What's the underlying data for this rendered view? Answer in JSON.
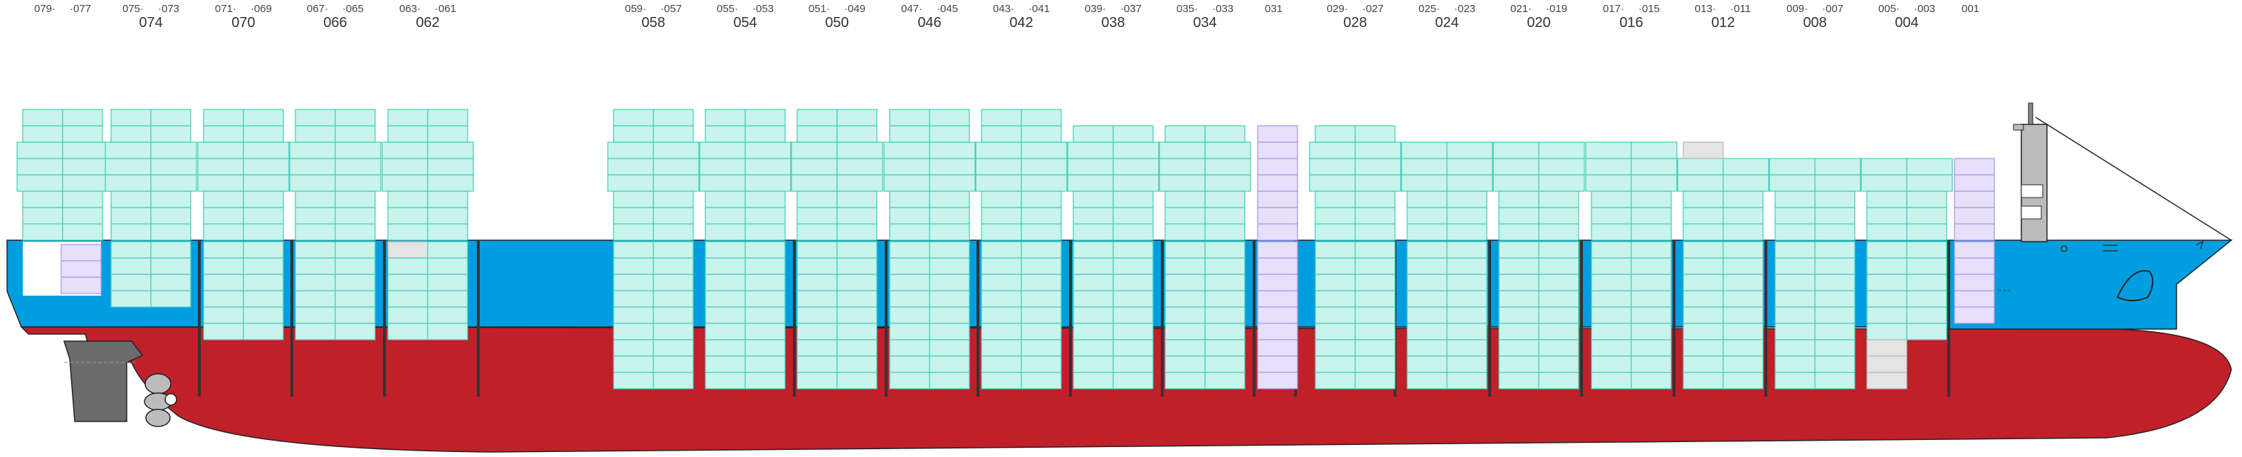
{
  "colors": {
    "hull": "#bf2029",
    "band": "#009ee0",
    "reefer_fill": "#c8f4ec",
    "reefer_stroke": "#3fcdb9",
    "special_fill": "#e6e0fb",
    "special_stroke": "#a894e6",
    "empty_fill": "#e4e4e4",
    "empty_stroke": "#b6b6b6",
    "bulkhead": "#333333",
    "outline": "#222222",
    "superstructure": "#bcbcbc",
    "rudder": "#6b6b6b"
  },
  "bay_labels": [
    {
      "small_left": "079·",
      "small_right": "·077",
      "big": ""
    },
    {
      "small_left": "075·",
      "small_right": "·073",
      "big": "074"
    },
    {
      "small_left": "071·",
      "small_right": "·069",
      "big": "070"
    },
    {
      "small_left": "067·",
      "small_right": "·065",
      "big": "066"
    },
    {
      "small_left": "063·",
      "small_right": "·061",
      "big": "062"
    },
    {
      "small_left": "059·",
      "small_right": "·057",
      "big": "058"
    },
    {
      "small_left": "055·",
      "small_right": "·053",
      "big": "054"
    },
    {
      "small_left": "051·",
      "small_right": "·049",
      "big": "050"
    },
    {
      "small_left": "047·",
      "small_right": "·045",
      "big": "046"
    },
    {
      "small_left": "043·",
      "small_right": "·041",
      "big": "042"
    },
    {
      "small_left": "039·",
      "small_right": "·037",
      "big": "038"
    },
    {
      "small_left": "035·",
      "small_right": "·033",
      "big": "034"
    },
    {
      "small_left": "",
      "small_right": "031",
      "big": ""
    },
    {
      "small_left": "029·",
      "small_right": "·027",
      "big": "028"
    },
    {
      "small_left": "025·",
      "small_right": "·023",
      "big": "024"
    },
    {
      "small_left": "021·",
      "small_right": "·019",
      "big": "020"
    },
    {
      "small_left": "017·",
      "small_right": "·015",
      "big": "016"
    },
    {
      "small_left": "013·",
      "small_right": "·011",
      "big": "012"
    },
    {
      "small_left": "009·",
      "small_right": "·007",
      "big": "008"
    },
    {
      "small_left": "005·",
      "small_right": "·003",
      "big": "004"
    },
    {
      "small_left": "",
      "small_right": "001",
      "big": ""
    }
  ],
  "bays": [
    {
      "kind": "double",
      "deck_tiers": 8,
      "hold_tiers": 0,
      "special_stack": true
    },
    {
      "kind": "double",
      "deck_tiers": 8,
      "hold_tiers": 4
    },
    {
      "kind": "double",
      "deck_tiers": 8,
      "hold_tiers": 6
    },
    {
      "kind": "double",
      "deck_tiers": 8,
      "hold_tiers": 6
    },
    {
      "kind": "double",
      "deck_tiers": 8,
      "hold_tiers": 6,
      "empty_slots": 1
    },
    {
      "kind": "double",
      "deck_tiers": 8,
      "hold_tiers": 9
    },
    {
      "kind": "double",
      "deck_tiers": 8,
      "hold_tiers": 9
    },
    {
      "kind": "double",
      "deck_tiers": 8,
      "hold_tiers": 9
    },
    {
      "kind": "double",
      "deck_tiers": 8,
      "hold_tiers": 9
    },
    {
      "kind": "double",
      "deck_tiers": 8,
      "hold_tiers": 9
    },
    {
      "kind": "double",
      "deck_tiers": 7,
      "hold_tiers": 9
    },
    {
      "kind": "double",
      "deck_tiers": 7,
      "hold_tiers": 9
    },
    {
      "kind": "single",
      "deck_tiers": 7,
      "hold_tiers": 9
    },
    {
      "kind": "double",
      "deck_tiers": 7,
      "hold_tiers": 9
    },
    {
      "kind": "double",
      "deck_tiers": 6,
      "hold_tiers": 9
    },
    {
      "kind": "double",
      "deck_tiers": 6,
      "hold_tiers": 9
    },
    {
      "kind": "double",
      "deck_tiers": 6,
      "hold_tiers": 9
    },
    {
      "kind": "double",
      "deck_tiers": 5,
      "hold_tiers": 9,
      "empty_top": true
    },
    {
      "kind": "double",
      "deck_tiers": 5,
      "hold_tiers": 9
    },
    {
      "kind": "double",
      "deck_tiers": 5,
      "hold_tiers": 6,
      "empty_hold": 3
    },
    {
      "kind": "single",
      "deck_tiers": 5,
      "hold_tiers": 5
    }
  ]
}
